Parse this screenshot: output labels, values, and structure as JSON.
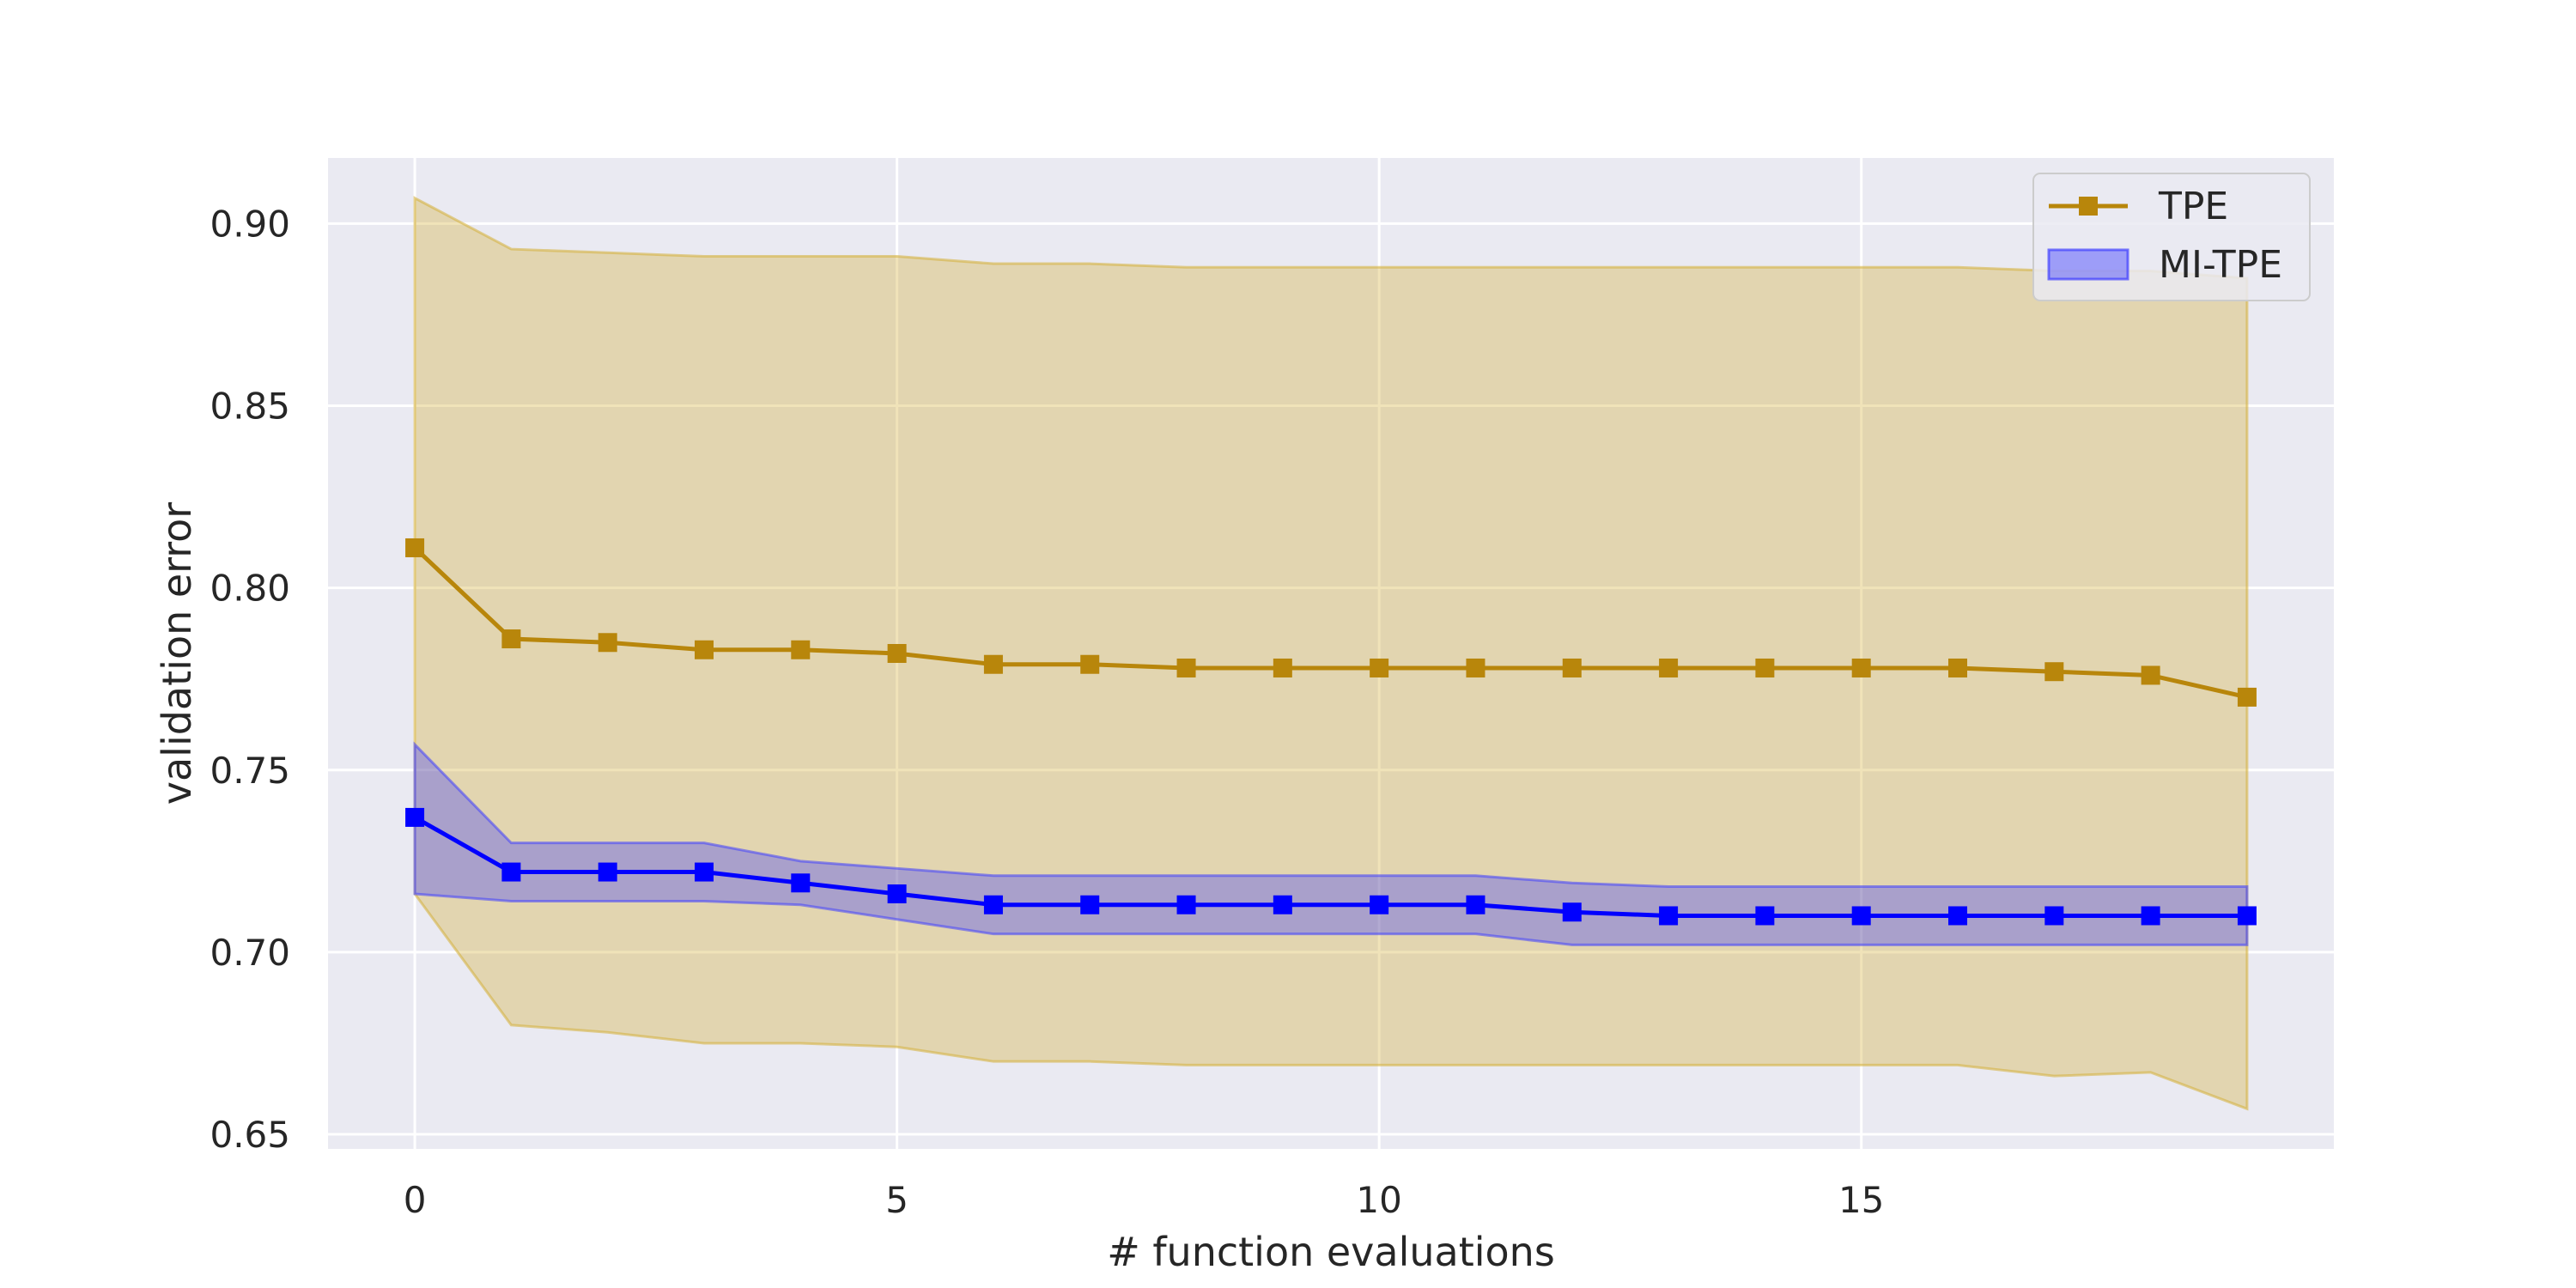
{
  "chart_data": {
    "type": "line",
    "title": "",
    "xlabel": "# function evaluations",
    "ylabel": "validation error",
    "xlim": [
      -0.9,
      19.9
    ],
    "ylim": [
      0.646,
      0.918
    ],
    "xticks": [
      0,
      5,
      10,
      15
    ],
    "xtick_labels": [
      "0",
      "5",
      "10",
      "15"
    ],
    "yticks": [
      0.65,
      0.7,
      0.75,
      0.8,
      0.85,
      0.9
    ],
    "ytick_labels": [
      "0.65",
      "0.70",
      "0.75",
      "0.80",
      "0.85",
      "0.90"
    ],
    "grid": true,
    "legend_position": "top-right",
    "x": [
      0,
      1,
      2,
      3,
      4,
      5,
      6,
      7,
      8,
      9,
      10,
      11,
      12,
      13,
      14,
      15,
      16,
      17,
      18,
      19
    ],
    "series": [
      {
        "name": "TPE",
        "color": "#b8860b",
        "marker": "square",
        "values": [
          0.811,
          0.786,
          0.785,
          0.783,
          0.783,
          0.782,
          0.779,
          0.779,
          0.778,
          0.778,
          0.778,
          0.778,
          0.778,
          0.778,
          0.778,
          0.778,
          0.778,
          0.777,
          0.776,
          0.77
        ],
        "band_upper": [
          0.907,
          0.893,
          0.892,
          0.891,
          0.891,
          0.891,
          0.889,
          0.889,
          0.888,
          0.888,
          0.888,
          0.888,
          0.888,
          0.888,
          0.888,
          0.888,
          0.888,
          0.887,
          0.887,
          0.885
        ],
        "band_lower": [
          0.716,
          0.68,
          0.678,
          0.675,
          0.675,
          0.674,
          0.67,
          0.67,
          0.669,
          0.669,
          0.669,
          0.669,
          0.669,
          0.669,
          0.669,
          0.669,
          0.669,
          0.666,
          0.667,
          0.657
        ],
        "band_color": "#d4af37"
      },
      {
        "name": "MI-TPE",
        "color": "#0000ff",
        "marker": "square",
        "values": [
          0.737,
          0.722,
          0.722,
          0.722,
          0.719,
          0.716,
          0.713,
          0.713,
          0.713,
          0.713,
          0.713,
          0.713,
          0.711,
          0.71,
          0.71,
          0.71,
          0.71,
          0.71,
          0.71,
          0.71
        ],
        "band_upper": [
          0.757,
          0.73,
          0.73,
          0.73,
          0.725,
          0.723,
          0.721,
          0.721,
          0.721,
          0.721,
          0.721,
          0.721,
          0.719,
          0.718,
          0.718,
          0.718,
          0.718,
          0.718,
          0.718,
          0.718
        ],
        "band_lower": [
          0.716,
          0.714,
          0.714,
          0.714,
          0.713,
          0.709,
          0.705,
          0.705,
          0.705,
          0.705,
          0.705,
          0.705,
          0.702,
          0.702,
          0.702,
          0.702,
          0.702,
          0.702,
          0.702,
          0.702
        ],
        "band_color": "#4040ff"
      }
    ]
  },
  "colors": {
    "plot_background": "#eaeaf2",
    "grid": "#ffffff",
    "text": "#262626"
  }
}
